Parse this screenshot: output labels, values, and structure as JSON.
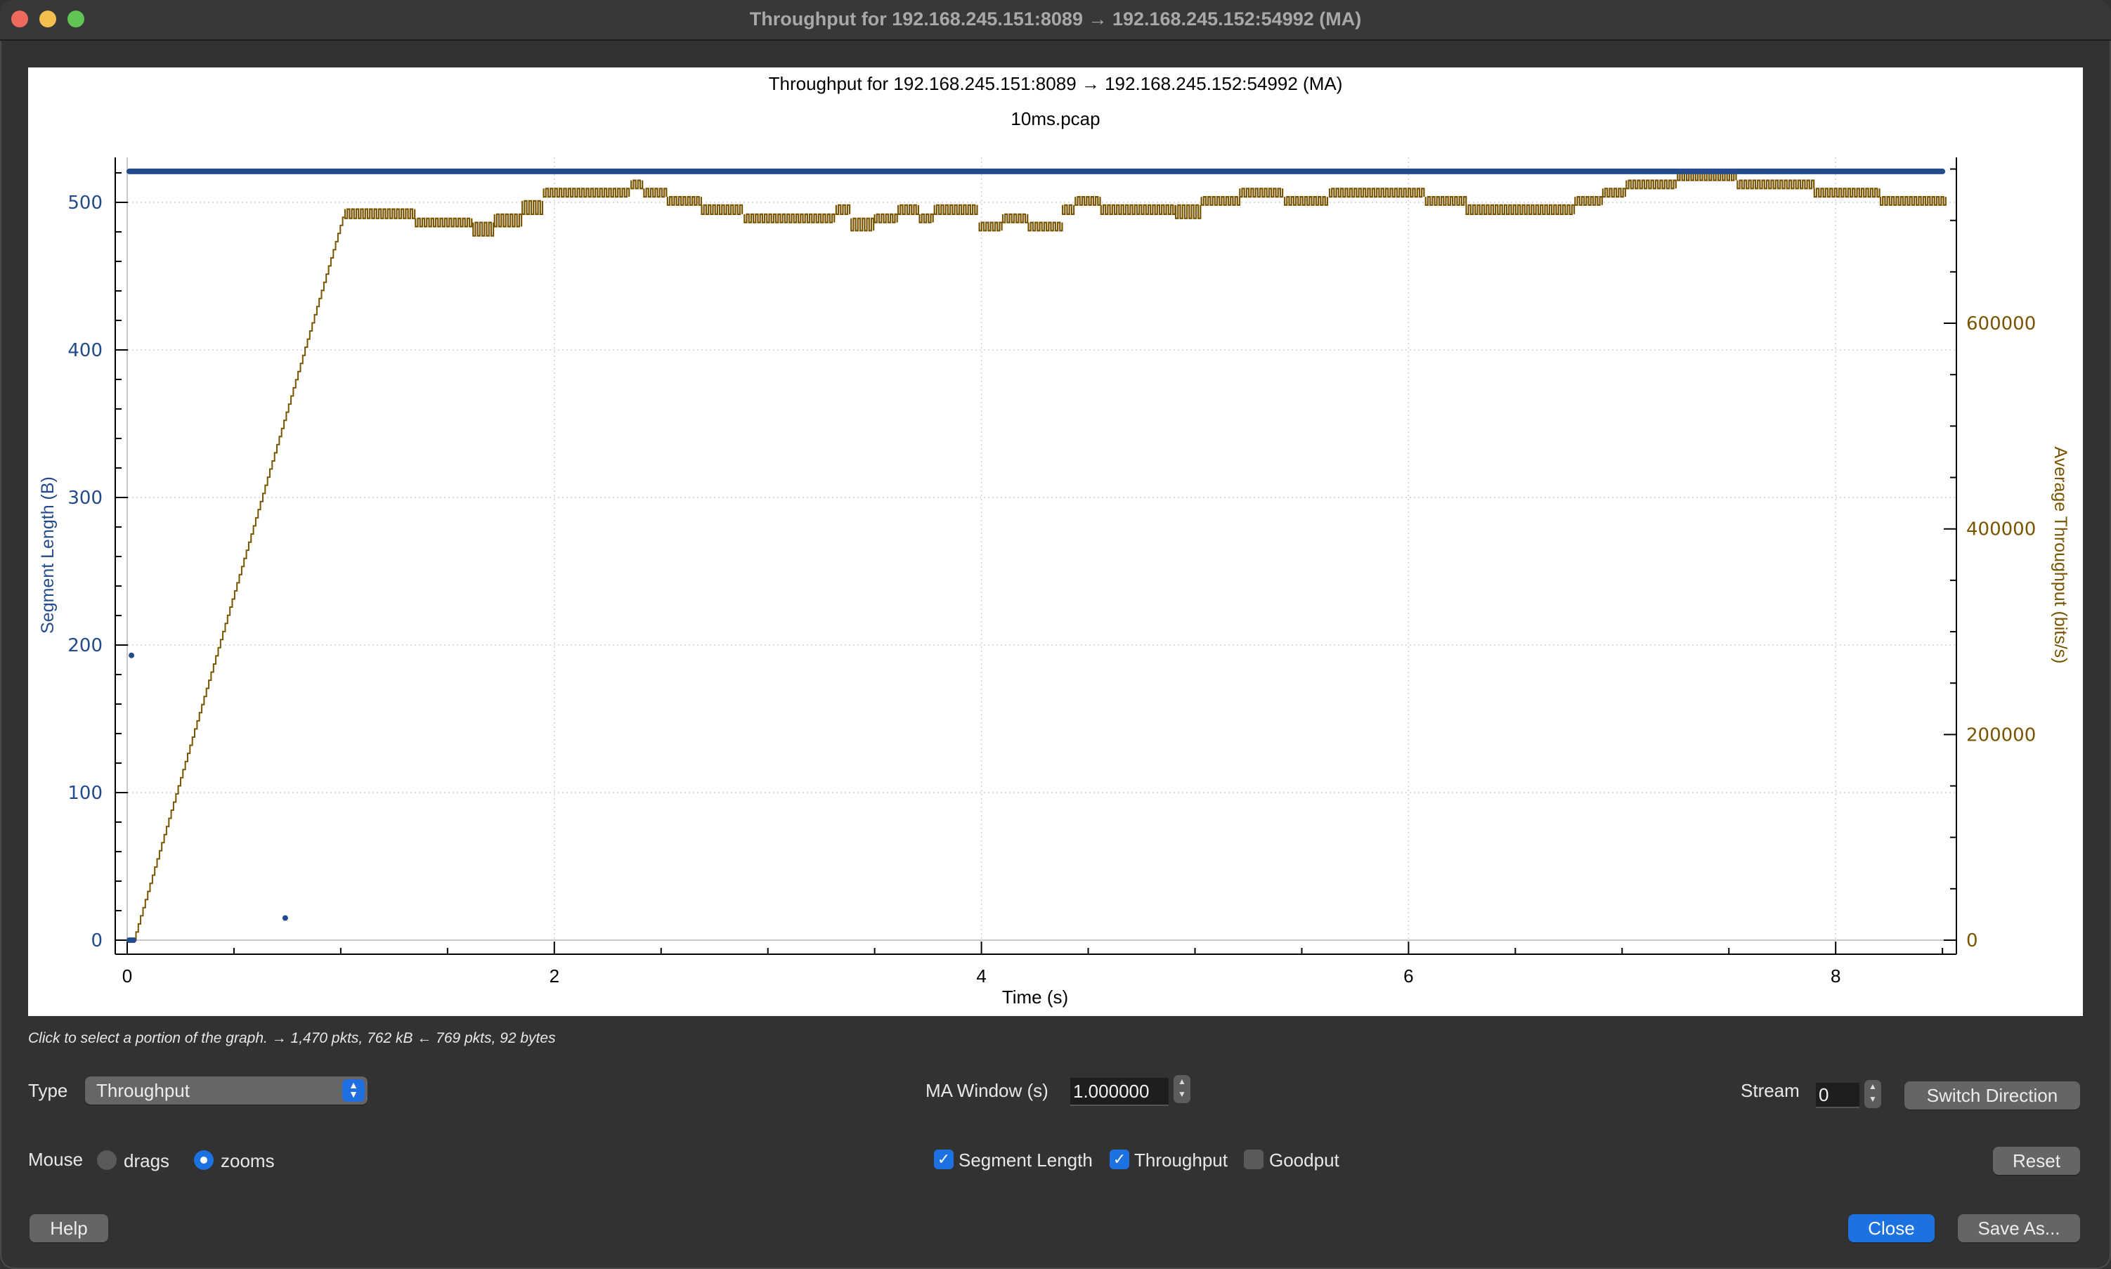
{
  "window": {
    "title": "Throughput for 192.168.245.151:8089 → 192.168.245.152:54992 (MA)",
    "traffic_lights": [
      "close",
      "minimize",
      "zoom"
    ]
  },
  "chart_data": {
    "type": "line",
    "title": "Throughput for 192.168.245.151:8089 → 192.168.245.152:54992 (MA)",
    "subtitle": "10ms.pcap",
    "xlabel": "Time (s)",
    "ylabel": "Segment Length (B)",
    "y2label": "Average Throughput (bits/s)",
    "xlim": [
      -0.02,
      8.57
    ],
    "ylim": [
      -5,
      540
    ],
    "y2lim": [
      -3500,
      760000
    ],
    "x_ticks": [
      0,
      2,
      4,
      6,
      8
    ],
    "y_ticks": [
      0,
      100,
      200,
      300,
      400,
      500
    ],
    "y2_ticks": [
      0,
      200000,
      400000,
      600000
    ],
    "grid": true,
    "colors": {
      "segment": "#234b8c",
      "throughput": "#7a5500",
      "axis_left_text": "#234b8c",
      "axis_right_text": "#7a5500"
    },
    "series": [
      {
        "name": "Segment Length",
        "axis": "left",
        "style": "dots",
        "constant_band": {
          "t_start": 0.01,
          "t_end": 8.5,
          "value": 521
        },
        "points": [
          [
            0.01,
            0
          ],
          [
            0.02,
            0
          ],
          [
            0.03,
            0
          ],
          [
            0.02,
            193
          ],
          [
            0.74,
            15
          ]
        ]
      },
      {
        "name": "Throughput",
        "axis": "right",
        "style": "step-band",
        "ramp": [
          [
            0.03,
            0
          ],
          [
            1.02,
            711000
          ]
        ],
        "steps": [
          [
            1.02,
            1.35,
            702000,
            711000
          ],
          [
            1.35,
            1.62,
            694000,
            702000
          ],
          [
            1.62,
            1.72,
            685000,
            698000
          ],
          [
            1.72,
            1.85,
            694000,
            706000
          ],
          [
            1.85,
            1.95,
            706000,
            719000
          ],
          [
            1.95,
            2.36,
            723000,
            731000
          ],
          [
            2.36,
            2.42,
            731000,
            739000
          ],
          [
            2.42,
            2.53,
            723000,
            731000
          ],
          [
            2.53,
            2.69,
            715000,
            723000
          ],
          [
            2.69,
            2.89,
            706000,
            715000
          ],
          [
            2.89,
            3.32,
            698000,
            706000
          ],
          [
            3.32,
            3.39,
            706000,
            715000
          ],
          [
            3.39,
            3.5,
            690000,
            702000
          ],
          [
            3.5,
            3.61,
            698000,
            706000
          ],
          [
            3.61,
            3.71,
            706000,
            715000
          ],
          [
            3.71,
            3.78,
            698000,
            706000
          ],
          [
            3.78,
            3.99,
            706000,
            715000
          ],
          [
            3.99,
            4.1,
            690000,
            698000
          ],
          [
            4.1,
            4.22,
            698000,
            706000
          ],
          [
            4.22,
            4.38,
            690000,
            698000
          ],
          [
            4.38,
            4.44,
            706000,
            715000
          ],
          [
            4.44,
            4.56,
            715000,
            723000
          ],
          [
            4.56,
            4.91,
            706000,
            715000
          ],
          [
            4.91,
            5.03,
            702000,
            715000
          ],
          [
            5.03,
            5.21,
            715000,
            723000
          ],
          [
            5.21,
            5.42,
            723000,
            731000
          ],
          [
            5.42,
            5.63,
            715000,
            723000
          ],
          [
            5.63,
            6.08,
            723000,
            731000
          ],
          [
            6.08,
            6.27,
            715000,
            723000
          ],
          [
            6.27,
            6.78,
            706000,
            715000
          ],
          [
            6.78,
            6.91,
            715000,
            723000
          ],
          [
            6.91,
            7.02,
            723000,
            731000
          ],
          [
            7.02,
            7.26,
            731000,
            739000
          ],
          [
            7.26,
            7.54,
            739000,
            747000
          ],
          [
            7.54,
            7.9,
            731000,
            739000
          ],
          [
            7.9,
            8.21,
            723000,
            731000
          ],
          [
            8.21,
            8.52,
            715000,
            723000
          ]
        ]
      }
    ]
  },
  "status_text": "Click to select a portion of the graph. → 1,470 pkts, 762 kB ← 769 pkts, 92 bytes",
  "controls": {
    "type_label": "Type",
    "type_value": "Throughput",
    "ma_window_label": "MA Window (s)",
    "ma_window_value": "1.000000",
    "stream_label": "Stream",
    "stream_value": "0",
    "switch_direction": "Switch Direction",
    "mouse_label": "Mouse",
    "mouse_options": [
      {
        "label": "drags",
        "selected": false
      },
      {
        "label": "zooms",
        "selected": true
      }
    ],
    "checkboxes": [
      {
        "label": "Segment Length",
        "checked": true
      },
      {
        "label": "Throughput",
        "checked": true
      },
      {
        "label": "Goodput",
        "checked": false
      }
    ],
    "reset": "Reset",
    "help": "Help",
    "close": "Close",
    "save_as": "Save As..."
  },
  "icons": {
    "checkmark": "✓",
    "stepper_up": "˄",
    "stepper_down": "˅",
    "select_arrows": "⌃⌄"
  }
}
